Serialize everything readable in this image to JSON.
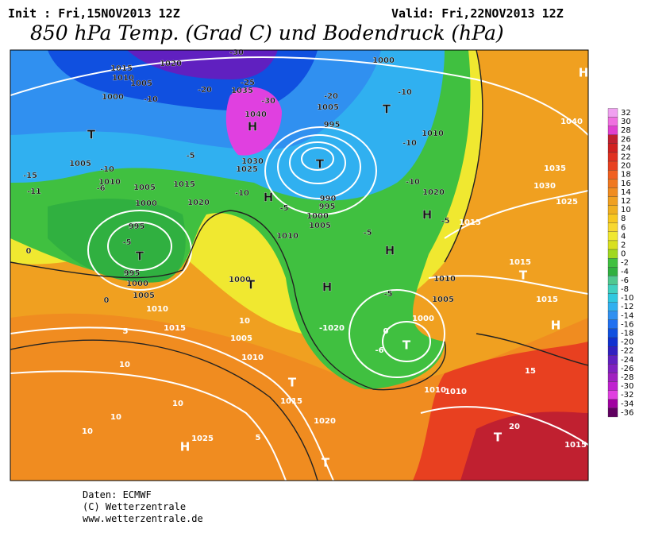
{
  "header": {
    "init": "Init : Fri,15NOV2013 12Z",
    "valid": "Valid: Fri,22NOV2013 12Z",
    "title": "850 hPa Temp. (Grad C) und Bodendruck (hPa)"
  },
  "footer": {
    "source": "Daten: ECMWF",
    "copyright": "(C) Wetterzentrale",
    "url": "www.wetterzentrale.de"
  },
  "colorbar": {
    "levels": [
      32,
      30,
      28,
      26,
      24,
      22,
      20,
      18,
      16,
      14,
      12,
      10,
      8,
      6,
      4,
      2,
      0,
      -2,
      -4,
      -6,
      -8,
      -10,
      -12,
      -14,
      -16,
      -18,
      -20,
      -22,
      -24,
      -26,
      -28,
      -30,
      -32,
      -34,
      -36
    ],
    "colors": [
      "#f0a0f0",
      "#f070e0",
      "#e040d0",
      "#c02030",
      "#d02020",
      "#e03020",
      "#e84020",
      "#f06020",
      "#f07820",
      "#f08c20",
      "#f0a020",
      "#f0b020",
      "#f8c820",
      "#f8d830",
      "#f0e830",
      "#d8e020",
      "#a0d820",
      "#40c040",
      "#30b040",
      "#50c890",
      "#40d0c0",
      "#30c8e0",
      "#30b0f0",
      "#3090f0",
      "#2070f0",
      "#1050e0",
      "#1030d0",
      "#3020c0",
      "#6020c0",
      "#8020c0",
      "#a020c0",
      "#c020d0",
      "#e040e0",
      "#a000a0",
      "#600060"
    ]
  },
  "map": {
    "labels": [
      "1015",
      "1020",
      "1010",
      "1005",
      "1000",
      "-10",
      "T",
      "H",
      "1040",
      "1035",
      "-25",
      "-30",
      "-20",
      "1000",
      "-30",
      "T",
      "1005",
      "-20",
      "-10",
      "995",
      "T",
      "1010",
      "-10",
      "1040",
      "1035",
      "1030",
      "1025",
      "1020",
      "-10",
      "H",
      "-5",
      "1015",
      "H",
      "-5",
      "H",
      "-5",
      "1010",
      "1005",
      "1000",
      "T",
      "-6",
      "0",
      "-1020",
      "T",
      "995",
      "1000",
      "1005",
      "-5",
      "995",
      "1000",
      "1005",
      "1010",
      "1015",
      "0",
      "0",
      "5",
      "10",
      "10",
      "10",
      "10",
      "H",
      "1025",
      "5",
      "T",
      "T",
      "1015",
      "1020",
      "1000",
      "T",
      "10",
      "1005",
      "1010",
      "1015",
      "T",
      "1015",
      "H",
      "15",
      "20",
      "T",
      "1015",
      "1010",
      "1010",
      "-15",
      "-11",
      "-10",
      "-6",
      "1005",
      "1010",
      "-5",
      "1015",
      "1020",
      "-10",
      "1030",
      "1025",
      "-5",
      "1010",
      "1000",
      "1005",
      "990",
      "995",
      "H",
      "H"
    ]
  }
}
